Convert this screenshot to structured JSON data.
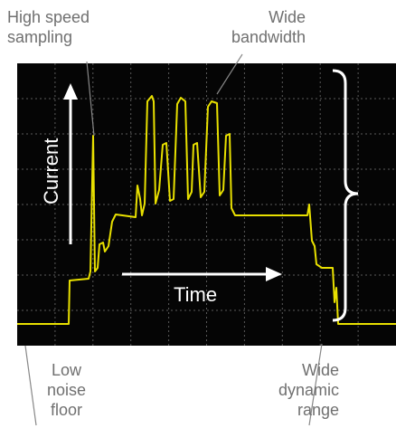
{
  "callouts": {
    "high_speed": [
      "High speed",
      "sampling"
    ],
    "wide_bandwidth": [
      "Wide",
      "bandwidth"
    ],
    "low_noise": [
      "Low",
      "noise",
      "floor"
    ],
    "wide_dynamic": [
      "Wide",
      "dynamic",
      "range"
    ]
  },
  "screen": {
    "current_label": "Current",
    "time_label": "Time"
  },
  "colors": {
    "screen_bg": "#050505",
    "grid": "#5a5a5a",
    "trace": "#e8e000",
    "annotation": "#ffffff",
    "leader": "#888888"
  }
}
